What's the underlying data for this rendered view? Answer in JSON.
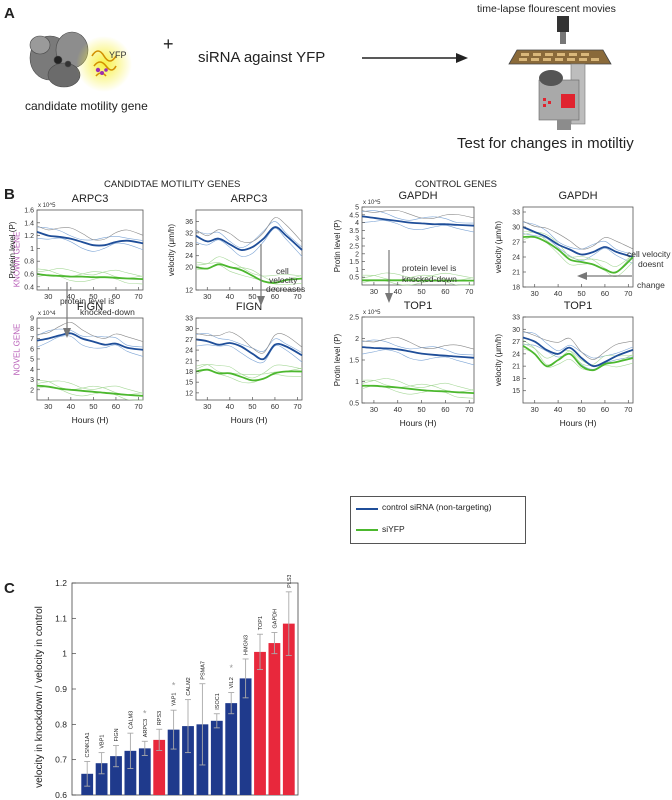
{
  "panel_labels": {
    "a": "A",
    "b": "B",
    "c": "C"
  },
  "panel_a": {
    "gene_caption": "candidate motility gene",
    "yfp_label": "YFP",
    "plus": "+",
    "sirna_text": "siRNA against YFP",
    "movies_text": "time-lapse flourescent movies",
    "test_text": "Test for changes in motiltiy"
  },
  "panel_b": {
    "left_header": "CANDIDTAE MOTILITY GENES",
    "right_header": "CONTROL GENES",
    "row_known": "KNOWN GENE",
    "row_novel": "NOVEL GENE",
    "hours_label": "Hours (H)",
    "protein_label": "Protein level (P)",
    "protin_label": "Protin level (P)",
    "velocity_label": "velocity  (μm/h)",
    "annotations": {
      "arpc3_protein": [
        "protein level  is",
        "knocked-down"
      ],
      "arpc3_velocity": [
        "cell",
        "velocity",
        "decreases"
      ],
      "gapdh_protein": [
        "protein level is",
        "knocked-down"
      ],
      "gapdh_velocity": [
        "cell velocity",
        "doesnt",
        "change"
      ]
    },
    "legend": {
      "control": "control siRNA (non-targeting)",
      "siyfp": "siYFP"
    },
    "colors": {
      "control": "#1f4e99",
      "siyfp": "#4cb82e",
      "thin_blue": "#7fa6d6",
      "thin_gray": "#8a8a8a",
      "thin_green": "#a8d99a",
      "row_label": "#b85fb8"
    }
  },
  "chart_data": [
    {
      "type": "line",
      "title": "ARPC3",
      "xlabel": "Hours (H)",
      "ylabel": "Protein level (P)",
      "y_exponent": "x 10^5",
      "xlim": [
        25,
        72
      ],
      "ylim": [
        0.35,
        1.6
      ],
      "xticks": [
        "30",
        "40",
        "50",
        "60",
        "70"
      ],
      "yticks": [
        "0.4",
        "0.6",
        "0.8",
        "1",
        "1.2",
        "1.4",
        "1.6"
      ],
      "x": [
        25,
        30,
        35,
        40,
        45,
        50,
        55,
        60,
        65,
        72
      ],
      "series": [
        {
          "name": "control siRNA (non-targeting)",
          "values": [
            1.26,
            1.2,
            1.18,
            1.15,
            1.1,
            1.05,
            1.05,
            1.1,
            1.12,
            1.08
          ]
        },
        {
          "name": "siYFP",
          "values": [
            0.6,
            0.58,
            0.57,
            0.56,
            0.56,
            0.55,
            0.55,
            0.54,
            0.53,
            0.52
          ]
        }
      ]
    },
    {
      "type": "line",
      "title": "ARPC3",
      "xlabel": "",
      "ylabel": "velocity  (μm/h)",
      "xlim": [
        25,
        72
      ],
      "ylim": [
        12,
        40
      ],
      "xticks": [
        "30",
        "40",
        "50",
        "60",
        "70"
      ],
      "yticks": [
        "12",
        "20",
        "24",
        "28",
        "32",
        "36"
      ],
      "x": [
        25,
        30,
        35,
        40,
        45,
        50,
        55,
        60,
        65,
        72
      ],
      "series": [
        {
          "name": "control siRNA (non-targeting)",
          "values": [
            31,
            29,
            30,
            28,
            26,
            27,
            30,
            34,
            31,
            26
          ]
        },
        {
          "name": "siYFP",
          "values": [
            20,
            19.5,
            21,
            20,
            19,
            17,
            15,
            14.5,
            15.5,
            16
          ]
        }
      ]
    },
    {
      "type": "line",
      "title": "FIGN",
      "xlabel": "Hours (H)",
      "ylabel": "",
      "y_exponent": "x 10^4",
      "xlim": [
        25,
        72
      ],
      "ylim": [
        1,
        9
      ],
      "xticks": [
        "30",
        "40",
        "50",
        "60",
        "70"
      ],
      "yticks": [
        "2",
        "3",
        "4",
        "5",
        "6",
        "7",
        "8",
        "9"
      ],
      "x": [
        25,
        30,
        35,
        40,
        45,
        50,
        55,
        60,
        65,
        72
      ],
      "series": [
        {
          "name": "control siRNA (non-targeting)",
          "values": [
            6.8,
            7.0,
            7.3,
            7.5,
            7.0,
            6.7,
            6.4,
            6.5,
            6.1,
            5.9
          ]
        },
        {
          "name": "siYFP",
          "values": [
            2.4,
            2.3,
            2.1,
            2.0,
            1.9,
            1.8,
            1.7,
            1.6,
            1.5,
            1.4
          ]
        }
      ]
    },
    {
      "type": "line",
      "title": "FIGN",
      "xlabel": "Hours (H)",
      "ylabel": "",
      "xlim": [
        25,
        72
      ],
      "ylim": [
        10,
        33
      ],
      "xticks": [
        "30",
        "40",
        "50",
        "60",
        "70"
      ],
      "yticks": [
        "12",
        "15",
        "18",
        "21",
        "24",
        "27",
        "30",
        "33"
      ],
      "x": [
        25,
        30,
        35,
        40,
        45,
        50,
        55,
        60,
        65,
        72
      ],
      "series": [
        {
          "name": "control siRNA (non-targeting)",
          "values": [
            27,
            26.5,
            25.5,
            26,
            25,
            23,
            21.5,
            25.5,
            25,
            22.5
          ]
        },
        {
          "name": "siYFP",
          "values": [
            18,
            18.5,
            17.5,
            17.5,
            16.5,
            15.5,
            16,
            17.5,
            18,
            18
          ]
        }
      ]
    },
    {
      "type": "line",
      "title": "GAPDH",
      "xlabel": "",
      "ylabel": "Protin level (P)",
      "y_exponent": "x 10^5",
      "xlim": [
        25,
        72
      ],
      "ylim": [
        0,
        5
      ],
      "xticks": [
        "30",
        "40",
        "50",
        "60",
        "70"
      ],
      "yticks": [
        "0.5",
        "1",
        "1.5",
        "2",
        "2.5",
        "3",
        "3.5",
        "4",
        "4.5",
        "5"
      ],
      "x": [
        25,
        30,
        35,
        40,
        45,
        50,
        55,
        60,
        65,
        72
      ],
      "series": [
        {
          "name": "control siRNA (non-targeting)",
          "values": [
            4.4,
            4.3,
            4.2,
            4.1,
            4.0,
            3.95,
            3.9,
            3.9,
            3.85,
            3.8
          ]
        },
        {
          "name": "siYFP",
          "values": [
            0.3,
            0.3,
            0.3,
            0.3,
            0.3,
            0.28,
            0.28,
            0.28,
            0.28,
            0.28
          ]
        }
      ]
    },
    {
      "type": "line",
      "title": "GAPDH",
      "xlabel": "",
      "ylabel": "velocity  (μm/h)",
      "xlim": [
        25,
        72
      ],
      "ylim": [
        18,
        34
      ],
      "xticks": [
        "30",
        "40",
        "50",
        "60",
        "70"
      ],
      "yticks": [
        "18",
        "21",
        "24",
        "27",
        "30",
        "33"
      ],
      "x": [
        25,
        30,
        35,
        40,
        45,
        50,
        55,
        60,
        65,
        72
      ],
      "series": [
        {
          "name": "control siRNA (non-targeting)",
          "values": [
            30,
            29,
            28,
            26.5,
            25.5,
            24.5,
            25,
            26,
            25,
            24
          ]
        },
        {
          "name": "siYFP",
          "values": [
            28,
            28,
            27,
            25.5,
            23.5,
            23,
            22.5,
            21.5,
            21,
            24
          ]
        }
      ]
    },
    {
      "type": "line",
      "title": "TOP1",
      "xlabel": "Hours (H)",
      "ylabel": "Protin level (P)",
      "y_exponent": "x 10^5",
      "xlim": [
        25,
        72
      ],
      "ylim": [
        0.5,
        2.5
      ],
      "xticks": [
        "30",
        "40",
        "50",
        "60",
        "70"
      ],
      "yticks": [
        "0.5",
        "1",
        "1.5",
        "2",
        "2.5"
      ],
      "x": [
        25,
        30,
        35,
        40,
        45,
        50,
        55,
        60,
        65,
        72
      ],
      "series": [
        {
          "name": "control siRNA (non-targeting)",
          "values": [
            1.8,
            1.78,
            1.77,
            1.75,
            1.7,
            1.65,
            1.62,
            1.6,
            1.58,
            1.55
          ]
        },
        {
          "name": "siYFP",
          "values": [
            0.9,
            0.9,
            0.88,
            0.86,
            0.83,
            0.8,
            0.78,
            0.77,
            0.75,
            0.73
          ]
        }
      ]
    },
    {
      "type": "line",
      "title": "TOP1",
      "xlabel": "Hours (H)",
      "ylabel": "velocity  (μm/h)",
      "xlim": [
        25,
        72
      ],
      "ylim": [
        12,
        33
      ],
      "xticks": [
        "30",
        "40",
        "50",
        "60",
        "70"
      ],
      "yticks": [
        "15",
        "18",
        "21",
        "24",
        "27",
        "30",
        "33"
      ],
      "x": [
        25,
        30,
        35,
        40,
        45,
        50,
        55,
        60,
        65,
        72
      ],
      "series": [
        {
          "name": "control siRNA (non-targeting)",
          "values": [
            28,
            27,
            25,
            24,
            25.5,
            23,
            21,
            22,
            23.5,
            25
          ]
        },
        {
          "name": "siYFP",
          "values": [
            26,
            24,
            21,
            22.5,
            24,
            21,
            20,
            21.5,
            22,
            23
          ]
        }
      ]
    },
    {
      "type": "bar",
      "title": "",
      "xlabel": "",
      "ylabel": "velocity in knockdown / velocity in control",
      "ylim": [
        0.6,
        1.2
      ],
      "yticks": [
        "0.6",
        "0.7",
        "0.8",
        "0.9",
        "1",
        "1.1",
        "1.2"
      ],
      "categories": [
        "CSNK1A1",
        "VBP1",
        "FIGN",
        "CALM3",
        "ARPC3",
        "RPS3",
        "YAP1",
        "CALM2",
        "PSMA7",
        "ISOC1",
        "VIL2",
        "HMGN3",
        "TOP1",
        "GAPDH",
        "PLS3"
      ],
      "values": [
        0.66,
        0.69,
        0.71,
        0.725,
        0.732,
        0.756,
        0.785,
        0.795,
        0.8,
        0.81,
        0.86,
        0.93,
        1.005,
        1.03,
        1.085
      ],
      "errors": [
        0.035,
        0.03,
        0.03,
        0.05,
        0.02,
        0.03,
        0.055,
        0.075,
        0.115,
        0.02,
        0.03,
        0.055,
        0.05,
        0.03,
        0.09
      ],
      "is_control": [
        false,
        false,
        false,
        false,
        false,
        true,
        false,
        false,
        false,
        false,
        false,
        false,
        true,
        true,
        true
      ],
      "asterisk": [
        false,
        false,
        false,
        false,
        true,
        false,
        true,
        false,
        false,
        false,
        true,
        false,
        false,
        false,
        false
      ],
      "asterisk_symbol": "*",
      "colors": {
        "candidate": "#1f3a8c",
        "control": "#e8283c",
        "error": "#aaaaaa"
      }
    }
  ]
}
